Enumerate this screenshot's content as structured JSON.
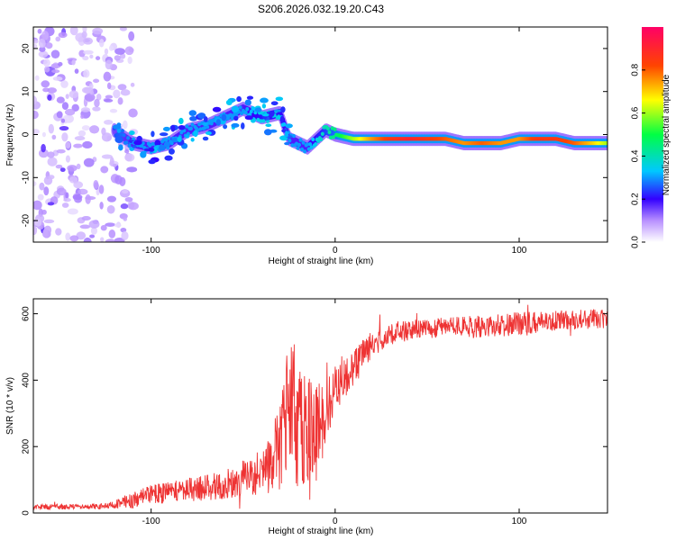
{
  "title": "S206.2026.032.19.20.C43",
  "chart_data": [
    {
      "type": "heatmap",
      "xlabel": "Height of straight line (km)",
      "ylabel": "Frequency (Hz)",
      "xlim": [
        -164,
        148
      ],
      "ylim": [
        -25,
        25
      ],
      "xticks": [
        -100,
        0,
        100
      ],
      "yticks": [
        -20,
        -10,
        0,
        10,
        20
      ],
      "colorbar": {
        "label": "Normalized spectral amplitude",
        "range": [
          0,
          1
        ],
        "ticks": [
          0.0,
          0.2,
          0.4,
          0.6,
          0.8
        ],
        "tick_labels": [
          "0.0",
          "0.2",
          "0.4",
          "0.6",
          "0.8"
        ]
      },
      "ridge": {
        "x": [
          -120,
          -110,
          -100,
          -90,
          -80,
          -70,
          -60,
          -50,
          -40,
          -30,
          -25,
          -20,
          -15,
          -10,
          -5,
          0,
          10,
          20,
          30,
          40,
          50,
          60,
          70,
          80,
          90,
          100,
          110,
          120,
          130,
          140,
          148
        ],
        "freq": [
          1,
          -2,
          -3,
          -2,
          1,
          2,
          4,
          6,
          4,
          5,
          -1,
          -2,
          -3,
          -1,
          1,
          0,
          -1,
          -1,
          -1,
          -1,
          -1,
          -1,
          -2,
          -2,
          -2,
          -1,
          -1,
          -1,
          -2,
          -2,
          -2
        ],
        "amplitude": [
          0.25,
          0.3,
          0.3,
          0.3,
          0.3,
          0.3,
          0.3,
          0.3,
          0.35,
          0.35,
          0.3,
          0.3,
          0.3,
          0.35,
          0.4,
          0.45,
          0.6,
          0.75,
          0.85,
          0.9,
          0.85,
          0.8,
          0.75,
          0.8,
          0.75,
          0.75,
          0.85,
          0.85,
          0.8,
          0.7,
          0.6
        ]
      }
    },
    {
      "type": "line",
      "xlabel": "Height of straight line (km)",
      "ylabel": "SNR (10 * v/v)",
      "xlim": [
        -164,
        148
      ],
      "ylim": [
        0,
        645
      ],
      "xticks": [
        -100,
        0,
        100
      ],
      "yticks": [
        0,
        200,
        400,
        600
      ],
      "color": "#ee3333",
      "envelope": {
        "x": [
          -164,
          -130,
          -120,
          -110,
          -100,
          -80,
          -60,
          -40,
          -30,
          -25,
          -20,
          -15,
          -10,
          -5,
          0,
          10,
          20,
          30,
          40,
          60,
          80,
          100,
          120,
          140,
          148
        ],
        "y": [
          18,
          20,
          25,
          40,
          55,
          70,
          85,
          110,
          200,
          330,
          280,
          250,
          240,
          310,
          380,
          440,
          510,
          540,
          550,
          560,
          560,
          570,
          580,
          585,
          580
        ],
        "noise": [
          8,
          8,
          12,
          25,
          30,
          35,
          45,
          60,
          130,
          200,
          220,
          170,
          150,
          100,
          80,
          60,
          40,
          35,
          30,
          30,
          35,
          35,
          30,
          30,
          30
        ]
      }
    }
  ]
}
